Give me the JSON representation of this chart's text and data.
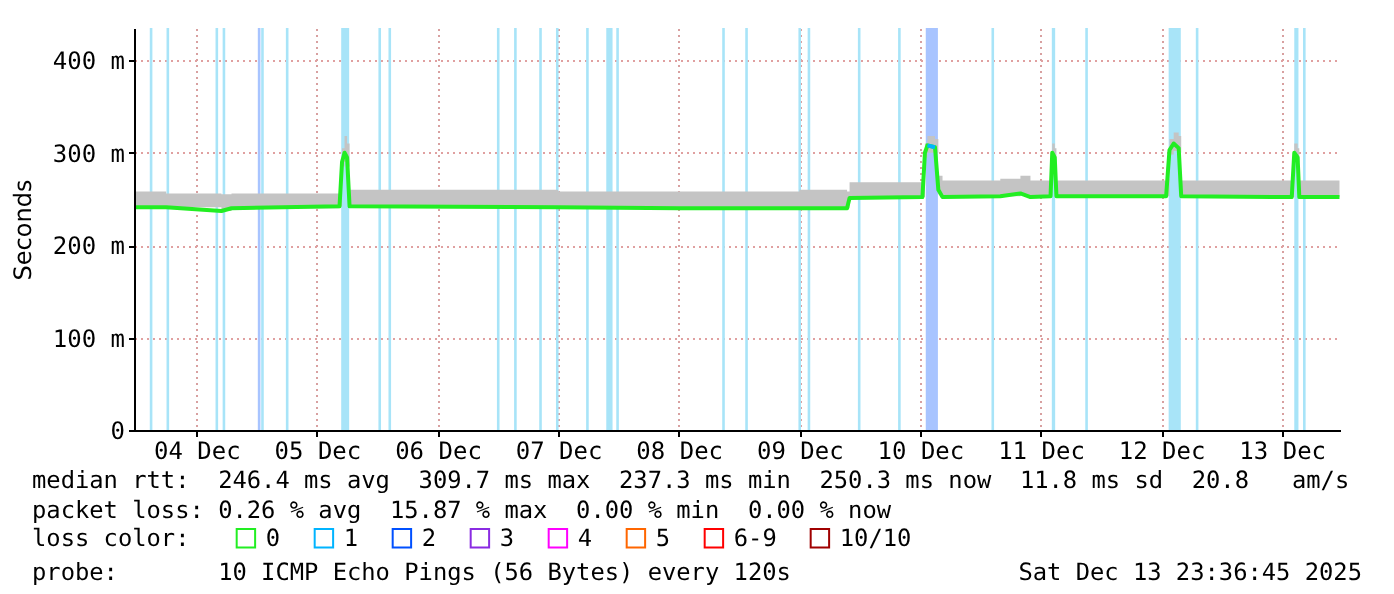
{
  "chart_data": {
    "type": "line",
    "ylabel": "Seconds",
    "legend_title": "loss color:",
    "legend": "bottom",
    "grid": true,
    "marker": "none",
    "xlim": [
      "2025-12-03T23:36",
      "2025-12-13T23:36"
    ],
    "xticks": [
      {
        "value": "2025-12-04T12:00",
        "label": "04 Dec"
      },
      {
        "value": "2025-12-05T12:00",
        "label": "05 Dec"
      },
      {
        "value": "2025-12-06T12:00",
        "label": "06 Dec"
      },
      {
        "value": "2025-12-07T12:00",
        "label": "07 Dec"
      },
      {
        "value": "2025-12-08T12:00",
        "label": "08 Dec"
      },
      {
        "value": "2025-12-09T12:00",
        "label": "09 Dec"
      },
      {
        "value": "2025-12-10T12:00",
        "label": "10 Dec"
      },
      {
        "value": "2025-12-11T12:00",
        "label": "11 Dec"
      },
      {
        "value": "2025-12-12T12:00",
        "label": "12 Dec"
      },
      {
        "value": "2025-12-13T12:00",
        "label": "13 Dec"
      }
    ],
    "ylim": [
      0,
      435
    ],
    "yticks": [
      0,
      {
        "value": 100,
        "label": "100 m"
      },
      {
        "value": 200,
        "label": "200 m"
      },
      {
        "value": 300,
        "label": "300 m"
      },
      {
        "value": 400,
        "label": "400 m"
      }
    ],
    "x": [
      "2025-12-04T00:00",
      "2025-12-04T06:00",
      "2025-12-04T17:00",
      "2025-12-04T19:00",
      "2025-12-05T16:30",
      "2025-12-05T17:00",
      "2025-12-05T17:30",
      "2025-12-05T18:00",
      "2025-12-05T18:30",
      "2025-12-07T12:00",
      "2025-12-08T12:00",
      "2025-12-09T12:00",
      "2025-12-09T21:30",
      "2025-12-09T22:00",
      "2025-12-10T12:30",
      "2025-12-10T13:00",
      "2025-12-10T13:30",
      "2025-12-10T15:00",
      "2025-12-10T15:40",
      "2025-12-10T16:30",
      "2025-12-11T04:00",
      "2025-12-11T08:00",
      "2025-12-11T10:00",
      "2025-12-11T14:00",
      "2025-12-11T14:20",
      "2025-12-11T14:50",
      "2025-12-11T15:10",
      "2025-12-12T13:00",
      "2025-12-12T13:40",
      "2025-12-12T14:30",
      "2025-12-12T15:30",
      "2025-12-12T16:00",
      "2025-12-13T14:00",
      "2025-12-13T14:30",
      "2025-12-13T15:10",
      "2025-12-13T15:30",
      "2025-12-13T23:30"
    ],
    "series": [
      {
        "name": "0",
        "color": "#22ee22",
        "values": [
          241,
          241,
          237,
          240,
          242,
          290,
          300,
          295,
          242,
          241,
          240,
          240,
          240,
          251,
          252,
          300,
          308,
          306,
          260,
          252,
          253,
          256,
          252,
          253,
          300,
          295,
          253,
          253,
          303,
          310,
          305,
          253,
          252,
          300,
          295,
          252,
          252
        ],
        "lower": [
          241,
          241,
          237,
          240,
          242,
          285,
          290,
          285,
          242,
          241,
          240,
          240,
          240,
          251,
          252,
          295,
          300,
          300,
          255,
          252,
          253,
          254,
          252,
          253,
          295,
          290,
          253,
          253,
          298,
          302,
          300,
          253,
          252,
          295,
          290,
          252,
          252
        ],
        "upper": [
          258,
          256,
          255,
          256,
          258,
          305,
          318,
          310,
          260,
          258,
          258,
          260,
          258,
          268,
          270,
          310,
          318,
          315,
          275,
          270,
          272,
          275,
          270,
          270,
          310,
          305,
          270,
          272,
          315,
          322,
          318,
          270,
          270,
          310,
          305,
          270,
          270
        ]
      },
      {
        "name": "1",
        "color": "#00b4ff",
        "values": [
          null,
          null,
          null,
          null,
          null,
          null,
          null,
          null,
          null,
          null,
          null,
          null,
          null,
          null,
          null,
          null,
          308,
          306,
          null,
          null,
          null,
          null,
          null,
          null,
          null,
          null,
          null,
          null,
          null,
          null,
          null,
          null,
          null,
          null,
          null,
          null,
          null
        ]
      },
      {
        "name": "2",
        "color": "#0050ff",
        "values": [
          null,
          null,
          null,
          null,
          null,
          null,
          null,
          null,
          null,
          null,
          null,
          null,
          null,
          null,
          null,
          null,
          null,
          null,
          null,
          null,
          null,
          null,
          null,
          null,
          null,
          null,
          null,
          null,
          null,
          null,
          null,
          null,
          null,
          null,
          null,
          null,
          null
        ]
      },
      {
        "name": "3",
        "color": "#8a2be2",
        "values": [
          null,
          null,
          null,
          null,
          null,
          null,
          null,
          null,
          null,
          null,
          null,
          null,
          null,
          null,
          null,
          null,
          null,
          null,
          null,
          null,
          null,
          null,
          null,
          null,
          null,
          null,
          null,
          null,
          null,
          null,
          null,
          null,
          null,
          null,
          null,
          null,
          null
        ]
      },
      {
        "name": "4",
        "color": "#ff00ff",
        "values": [
          null,
          null,
          null,
          null,
          null,
          null,
          null,
          null,
          null,
          null,
          null,
          null,
          null,
          null,
          null,
          null,
          null,
          null,
          null,
          null,
          null,
          null,
          null,
          null,
          null,
          null,
          null,
          null,
          null,
          null,
          null,
          null,
          null,
          null,
          null,
          null,
          null
        ]
      },
      {
        "name": "5",
        "color": "#ff6600",
        "values": [
          null,
          null,
          null,
          null,
          null,
          null,
          null,
          null,
          null,
          null,
          null,
          null,
          null,
          null,
          null,
          null,
          null,
          null,
          null,
          null,
          null,
          null,
          null,
          null,
          null,
          null,
          null,
          null,
          null,
          null,
          null,
          null,
          null,
          null,
          null,
          null,
          null
        ]
      },
      {
        "name": "6-9",
        "color": "#ff0000",
        "values": [
          null,
          null,
          null,
          null,
          null,
          null,
          null,
          null,
          null,
          null,
          null,
          null,
          null,
          null,
          null,
          null,
          null,
          null,
          null,
          null,
          null,
          null,
          null,
          null,
          null,
          null,
          null,
          null,
          null,
          null,
          null,
          null,
          null,
          null,
          null,
          null,
          null
        ]
      },
      {
        "name": "10/10",
        "color": "#a00000",
        "values": [
          null,
          null,
          null,
          null,
          null,
          null,
          null,
          null,
          null,
          null,
          null,
          null,
          null,
          null,
          null,
          null,
          null,
          null,
          null,
          null,
          null,
          null,
          null,
          null,
          null,
          null,
          null,
          null,
          null,
          null,
          null,
          null,
          null,
          null,
          null,
          null,
          null
        ]
      }
    ],
    "bands": [
      {
        "axis": "x",
        "from": "2025-12-05T16:50",
        "to": "2025-12-05T18:25",
        "color": "#a8e4f8"
      },
      {
        "axis": "x",
        "from": "2025-12-07T21:35",
        "to": "2025-12-07T22:50",
        "color": "#a8e4f8"
      },
      {
        "axis": "x",
        "from": "2025-12-10T13:10",
        "to": "2025-12-10T15:35",
        "color": "#a8c4ff"
      },
      {
        "axis": "x",
        "from": "2025-12-11T14:15",
        "to": "2025-12-11T14:55",
        "color": "#a8e4f8"
      },
      {
        "axis": "x",
        "from": "2025-12-12T13:30",
        "to": "2025-12-12T15:55",
        "color": "#a8e4f8"
      },
      {
        "axis": "x",
        "from": "2025-12-13T14:30",
        "to": "2025-12-13T15:20",
        "color": "#a8e4f8"
      }
    ],
    "ref_lines": [
      {
        "axis": "x",
        "value": "2025-12-04T03:00",
        "color": "#a8e4f8"
      },
      {
        "axis": "x",
        "value": "2025-12-04T06:20",
        "color": "#a8e4f8"
      },
      {
        "axis": "x",
        "value": "2025-12-04T16:05",
        "color": "#a8e4f8"
      },
      {
        "axis": "x",
        "value": "2025-12-04T17:30",
        "color": "#a8e4f8"
      },
      {
        "axis": "x",
        "value": "2025-12-05T00:30",
        "color": "#a8c4ff"
      },
      {
        "axis": "x",
        "value": "2025-12-05T01:10",
        "color": "#a8e4f8"
      },
      {
        "axis": "x",
        "value": "2025-12-05T06:05",
        "color": "#a8e4f8"
      },
      {
        "axis": "x",
        "value": "2025-12-06T00:30",
        "color": "#a8e4f8"
      },
      {
        "axis": "x",
        "value": "2025-12-06T02:30",
        "color": "#a8e4f8"
      },
      {
        "axis": "x",
        "value": "2025-12-07T00:05",
        "color": "#a8e4f8"
      },
      {
        "axis": "x",
        "value": "2025-12-07T03:30",
        "color": "#a8e4f8"
      },
      {
        "axis": "x",
        "value": "2025-12-07T08:30",
        "color": "#a8e4f8"
      },
      {
        "axis": "x",
        "value": "2025-12-07T11:50",
        "color": "#a8e4f8"
      },
      {
        "axis": "x",
        "value": "2025-12-07T17:50",
        "color": "#a8e4f8"
      },
      {
        "axis": "x",
        "value": "2025-12-07T23:50",
        "color": "#a8e4f8"
      },
      {
        "axis": "x",
        "value": "2025-12-08T20:55",
        "color": "#a8e4f8"
      },
      {
        "axis": "x",
        "value": "2025-12-09T01:30",
        "color": "#a8e4f8"
      },
      {
        "axis": "x",
        "value": "2025-12-09T12:05",
        "color": "#a8e4f8"
      },
      {
        "axis": "x",
        "value": "2025-12-09T13:55",
        "color": "#a8e4f8"
      },
      {
        "axis": "x",
        "value": "2025-12-09T23:55",
        "color": "#a8e4f8"
      },
      {
        "axis": "x",
        "value": "2025-12-10T07:55",
        "color": "#a8e4f8"
      },
      {
        "axis": "x",
        "value": "2025-12-11T02:30",
        "color": "#a8e4f8"
      },
      {
        "axis": "x",
        "value": "2025-12-11T21:10",
        "color": "#a8e4f8"
      },
      {
        "axis": "x",
        "value": "2025-12-12T19:10",
        "color": "#a8e4f8"
      },
      {
        "axis": "x",
        "value": "2025-12-13T16:30",
        "color": "#a8e4f8"
      }
    ],
    "annotations": [
      "median rtt:  246.4 ms avg  309.7 ms max  237.3 ms min  250.3 ms now  11.8 ms sd  20.8   am/s",
      "packet loss: 0.26 % avg  15.87 % max  0.00 % min  0.00 % now",
      "probe:       10 ICMP Echo Pings (56 Bytes) every 120s",
      "Sat Dec 13 23:36:45 2025"
    ]
  }
}
